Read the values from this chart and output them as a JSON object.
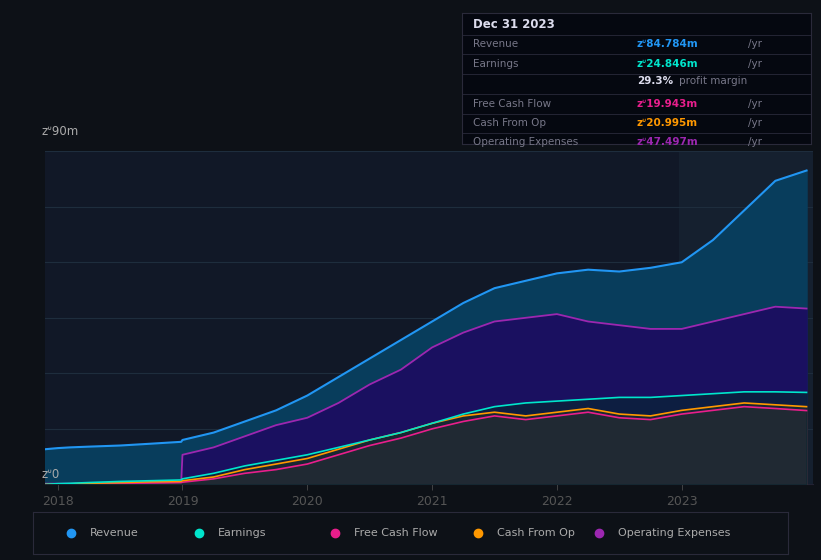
{
  "background_color": "#0d1117",
  "plot_bg_color": "#111827",
  "grid_color": "#1e2d3d",
  "title_date": "Dec 31 2023",
  "info_box": {
    "Revenue": {
      "value": "zᐡ84.784m",
      "color": "#2196f3"
    },
    "Earnings": {
      "value": "zᐡ24.846m",
      "color": "#00e5cc"
    },
    "profit_margin": "29.3%",
    "Free Cash Flow": {
      "value": "zᐡ19.943m",
      "color": "#e91e8c"
    },
    "Cash From Op": {
      "value": "zᐡ20.995m",
      "color": "#ff9800"
    },
    "Operating Expenses": {
      "value": "zᐡ47.497m",
      "color": "#9c27b0"
    }
  },
  "ylim": [
    0,
    90
  ],
  "ylabel_top": "zᐡ90m",
  "ylabel_bottom": "zᐡ0",
  "x_labels": [
    "2018",
    "2019",
    "2020",
    "2021",
    "2022",
    "2023"
  ],
  "x_ticks": [
    2018,
    2019,
    2020,
    2021,
    2022,
    2023
  ],
  "colors": {
    "revenue": "#2196f3",
    "earnings": "#00e5cc",
    "free_cash_flow": "#e91e8c",
    "cash_from_op": "#ff9800",
    "operating_expenses": "#9c27b0"
  },
  "x_values": [
    2017.9,
    2018.0,
    2018.1,
    2018.25,
    2018.5,
    2018.75,
    2018.99,
    2019.0,
    2019.25,
    2019.5,
    2019.75,
    2020.0,
    2020.25,
    2020.5,
    2020.75,
    2021.0,
    2021.25,
    2021.5,
    2021.75,
    2022.0,
    2022.25,
    2022.5,
    2022.75,
    2023.0,
    2023.25,
    2023.5,
    2023.75,
    2024.0
  ],
  "revenue": [
    9.5,
    9.8,
    10.0,
    10.2,
    10.5,
    11.0,
    11.5,
    12.0,
    14.0,
    17.0,
    20.0,
    24.0,
    29.0,
    34.0,
    39.0,
    44.0,
    49.0,
    53.0,
    55.0,
    57.0,
    58.0,
    57.5,
    58.5,
    60.0,
    66.0,
    74.0,
    82.0,
    84.784
  ],
  "operating_expenses": [
    0.2,
    0.2,
    0.2,
    0.3,
    0.4,
    0.5,
    0.6,
    8.0,
    10.0,
    13.0,
    16.0,
    18.0,
    22.0,
    27.0,
    31.0,
    37.0,
    41.0,
    44.0,
    45.0,
    46.0,
    44.0,
    43.0,
    42.0,
    42.0,
    44.0,
    46.0,
    48.0,
    47.497
  ],
  "free_cash_flow": [
    0.1,
    0.1,
    0.15,
    0.2,
    0.3,
    0.4,
    0.5,
    0.6,
    1.5,
    3.0,
    4.0,
    5.5,
    8.0,
    10.5,
    12.5,
    15.0,
    17.0,
    18.5,
    17.5,
    18.5,
    19.5,
    18.0,
    17.5,
    19.0,
    20.0,
    21.0,
    20.5,
    19.943
  ],
  "cash_from_op": [
    0.0,
    0.1,
    0.15,
    0.3,
    0.5,
    0.7,
    0.8,
    1.0,
    2.0,
    4.0,
    5.5,
    7.0,
    9.5,
    12.0,
    14.0,
    16.5,
    18.5,
    19.5,
    18.5,
    19.5,
    20.5,
    19.0,
    18.5,
    20.0,
    21.0,
    22.0,
    21.5,
    20.995
  ],
  "earnings": [
    0.0,
    0.2,
    0.3,
    0.5,
    0.8,
    1.0,
    1.2,
    1.5,
    3.0,
    5.0,
    6.5,
    8.0,
    10.0,
    12.0,
    14.0,
    16.5,
    19.0,
    21.0,
    22.0,
    22.5,
    23.0,
    23.5,
    23.5,
    24.0,
    24.5,
    25.0,
    25.0,
    24.846
  ],
  "legend": [
    {
      "label": "Revenue",
      "color": "#2196f3"
    },
    {
      "label": "Earnings",
      "color": "#00e5cc"
    },
    {
      "label": "Free Cash Flow",
      "color": "#e91e8c"
    },
    {
      "label": "Cash From Op",
      "color": "#ff9800"
    },
    {
      "label": "Operating Expenses",
      "color": "#9c27b0"
    }
  ]
}
